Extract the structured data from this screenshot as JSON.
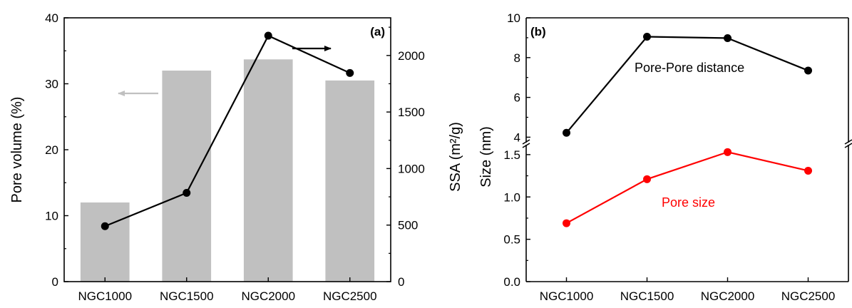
{
  "chart_data": [
    {
      "panel_label": "(a)",
      "type": "bar+line",
      "categories": [
        "NGC1000",
        "NGC1500",
        "NGC2000",
        "NGC2500"
      ],
      "ylabel_left": "Pore volume (%)",
      "ylabel_right": "SSA (m²/g)",
      "ylim_left": [
        0,
        40
      ],
      "ylim_right": [
        0,
        2333
      ],
      "yticks_left": [
        0,
        10,
        20,
        30,
        40
      ],
      "yticks_right": [
        0,
        500,
        1000,
        1500,
        2000
      ],
      "bars": {
        "axis": "left",
        "color": "#c0c0c0",
        "values": [
          12.0,
          32.0,
          33.7,
          30.5
        ]
      },
      "line": {
        "axis": "right",
        "color": "#000000",
        "values": [
          490,
          785,
          2175,
          1845
        ]
      },
      "annotations": [
        "arrow-left-grey (bars → left axis)",
        "arrow-right-black (line → right axis)"
      ]
    },
    {
      "panel_label": "(b)",
      "type": "line",
      "categories": [
        "NGC1000",
        "NGC1500",
        "NGC2000",
        "NGC2500"
      ],
      "ylabel": "Size (nm)",
      "axis_break": true,
      "upper_segment": {
        "ylim": [
          3.8,
          10.0
        ],
        "yticks": [
          4,
          6,
          8,
          10
        ]
      },
      "lower_segment": {
        "ylim": [
          0.0,
          1.6
        ],
        "yticks": [
          "0.0",
          "0.5",
          "1.0",
          "1.5"
        ]
      },
      "series": [
        {
          "name": "Pore-Pore distance",
          "color": "#000000",
          "segment": "upper",
          "values": [
            4.22,
            9.05,
            8.98,
            7.35
          ]
        },
        {
          "name": "Pore size",
          "color": "#ff0000",
          "segment": "lower",
          "values": [
            0.69,
            1.21,
            1.53,
            1.31
          ]
        }
      ]
    }
  ]
}
